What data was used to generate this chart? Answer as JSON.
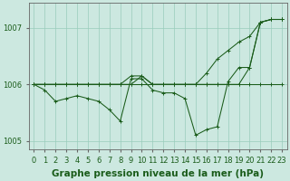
{
  "xlabel": "Graphe pression niveau de la mer (hPa)",
  "background_color": "#cce8e0",
  "grid_color": "#99ccbb",
  "line_color": "#1a5c1a",
  "x": [
    0,
    1,
    2,
    3,
    4,
    5,
    6,
    7,
    8,
    9,
    10,
    11,
    12,
    13,
    14,
    15,
    16,
    17,
    18,
    19,
    20,
    21,
    22,
    23
  ],
  "series": [
    [
      1006.0,
      1005.9,
      1005.7,
      1005.75,
      1005.8,
      1005.75,
      1005.7,
      1005.55,
      1005.35,
      1006.1,
      1006.1,
      1005.9,
      1005.85,
      1005.85,
      1005.75,
      1005.1,
      1005.2,
      1005.25,
      1006.05,
      1006.3,
      1006.3,
      1007.1,
      1007.15,
      1007.15
    ],
    [
      1006.0,
      1006.0,
      1006.0,
      1006.0,
      1006.0,
      1006.0,
      1006.0,
      1006.0,
      1006.0,
      1006.0,
      1006.0,
      1006.0,
      1006.0,
      1006.0,
      1006.0,
      1006.0,
      1006.0,
      1006.0,
      1006.0,
      1006.0,
      1006.0,
      1006.0,
      1006.0,
      1006.0
    ],
    [
      1006.0,
      1006.0,
      1006.0,
      1006.0,
      1006.0,
      1006.0,
      1006.0,
      1006.0,
      1006.0,
      1006.15,
      1006.15,
      1006.0,
      1006.0,
      1006.0,
      1006.0,
      1006.0,
      1006.2,
      1006.45,
      1006.6,
      1006.75,
      1006.85,
      1007.1,
      1007.15,
      1007.15
    ],
    [
      1006.0,
      1006.0,
      1006.0,
      1006.0,
      1006.0,
      1006.0,
      1006.0,
      1006.0,
      1006.0,
      1006.0,
      1006.15,
      1006.0,
      1006.0,
      1006.0,
      1006.0,
      1006.0,
      1006.0,
      1006.0,
      1006.0,
      1006.0,
      1006.3,
      1007.1,
      1007.15,
      1007.15
    ]
  ],
  "ylim": [
    1004.85,
    1007.45
  ],
  "yticks": [
    1005,
    1006,
    1007
  ],
  "xticks": [
    0,
    1,
    2,
    3,
    4,
    5,
    6,
    7,
    8,
    9,
    10,
    11,
    12,
    13,
    14,
    15,
    16,
    17,
    18,
    19,
    20,
    21,
    22,
    23
  ],
  "xlabel_fontsize": 7.5,
  "tick_fontsize": 6,
  "figsize": [
    3.2,
    2.0
  ],
  "dpi": 100
}
